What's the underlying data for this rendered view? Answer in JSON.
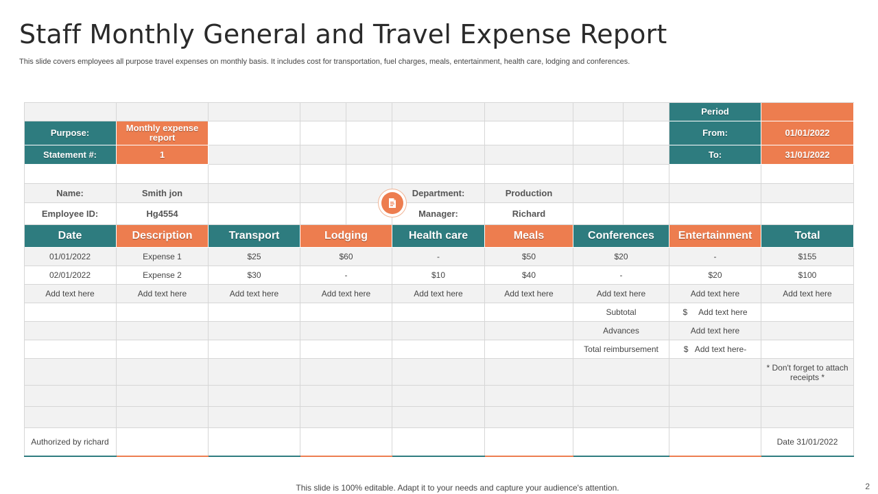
{
  "header": {
    "title": "Staff Monthly General and Travel Expense Report",
    "subtitle": "This slide covers employees all purpose travel expenses on monthly basis. It includes cost for transportation, fuel charges, meals, entertainment, health care, lodging and conferences."
  },
  "meta": {
    "period_label": "Period",
    "purpose_label": "Purpose:",
    "purpose_value": "Monthly expense report",
    "statement_label": "Statement #:",
    "statement_value": "1",
    "from_label": "From:",
    "from_value": "01/01/2022",
    "to_label": "To:",
    "to_value": "31/01/2022",
    "name_label": "Name:",
    "name_value": "Smith jon",
    "employee_label": "Employee ID:",
    "employee_value": "Hg4554",
    "department_label": "Department:",
    "department_value": "Production",
    "manager_label": "Manager:",
    "manager_value": "Richard"
  },
  "table": {
    "columns": [
      "Date",
      "Description",
      "Transport",
      "Lodging",
      "Health care",
      "Meals",
      "Conferences",
      "Entertainment",
      "Total"
    ],
    "rows": [
      [
        "01/01/2022",
        "Expense 1",
        "$25",
        "$60",
        "-",
        "$50",
        "$20",
        "-",
        "$155"
      ],
      [
        "02/01/2022",
        "Expense 2",
        "$30",
        "-",
        "$10",
        "$40",
        "-",
        "$20",
        "$100"
      ],
      [
        "Add text here",
        "Add text here",
        "Add text here",
        "Add text here",
        "Add text here",
        "Add text here",
        "Add text here",
        "Add text here",
        "Add text here"
      ]
    ]
  },
  "summary": {
    "subtotal_label": "Subtotal",
    "subtotal_value": "$     Add text here",
    "advances_label": "Advances",
    "advances_value": "Add text here",
    "reimb_label": "Total reimbursement",
    "reimb_value": "$   Add text here-",
    "note": "* Don't forget to attach receipts *"
  },
  "signoff": {
    "authorized": "Authorized by richard",
    "date": "Date 31/01/2022"
  },
  "footer": {
    "text": "This slide is 100% editable. Adapt it to your needs and capture your audience's attention.",
    "page": "2"
  },
  "colors": {
    "teal": "#2e7c7f",
    "orange": "#ed7d4f"
  },
  "icons": {
    "badge": "document-icon"
  }
}
